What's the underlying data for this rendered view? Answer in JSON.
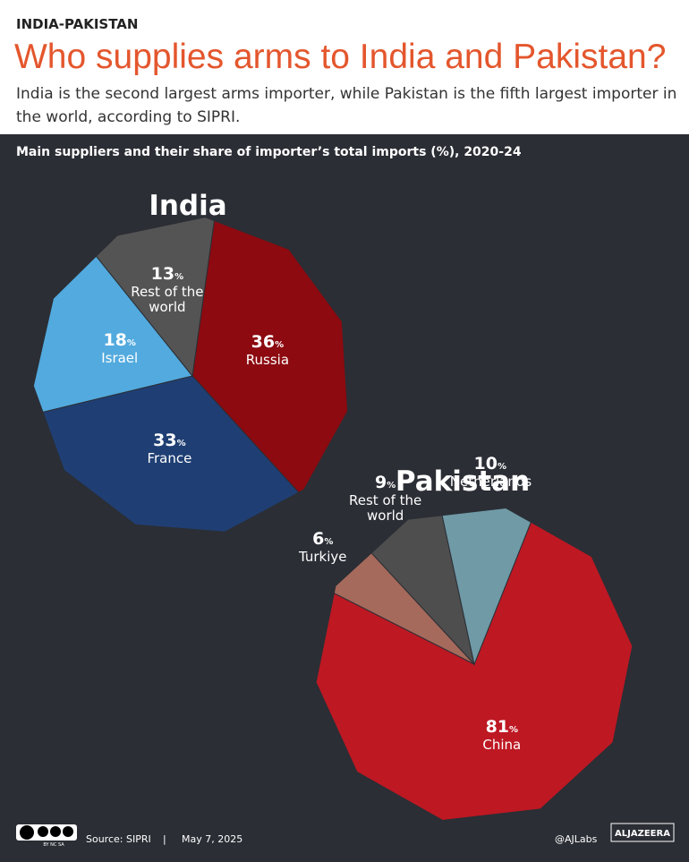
{
  "header": {
    "kicker": "INDIA-PAKISTAN",
    "title": "Who supplies arms to India and Pakistan?",
    "subtitle": "India is the second largest arms importer, while Pakistan is the fifth largest importer in the world, according to SIPRI.",
    "chart_subtitle": "Main suppliers and their share of importer’s total imports (%), 2020-24"
  },
  "chart_data": [
    {
      "type": "pie",
      "title": "India",
      "categories": [
        "Russia",
        "France",
        "Israel",
        "Rest of the world"
      ],
      "values": [
        36,
        33,
        18,
        13
      ],
      "value_unit": "%",
      "colors": [
        "#8c0a10",
        "#1f3f74",
        "#52aade",
        "#545454"
      ]
    },
    {
      "type": "pie",
      "title": "Pakistan",
      "categories": [
        "China",
        "Turkiye",
        "Rest of the world",
        "Netherlands"
      ],
      "values": [
        81,
        6,
        9,
        10
      ],
      "value_unit": "%",
      "colors": [
        "#be1823",
        "#a56a5b",
        "#4e4e4e",
        "#6f9aa6"
      ]
    }
  ],
  "footer": {
    "license": "BY NC SA",
    "source": "Source: SIPRI",
    "date": "May 7, 2025",
    "handle": "@AJLabs",
    "brand": "ALJAZEERA"
  }
}
